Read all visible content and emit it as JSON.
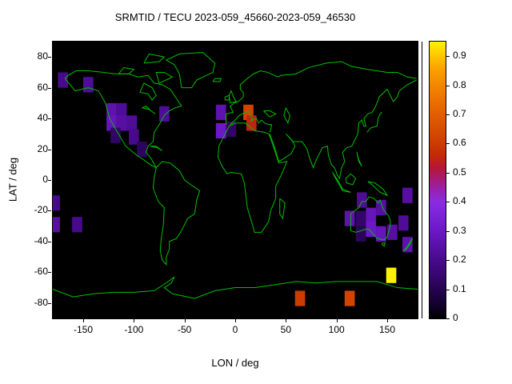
{
  "title": "SRMTID / TECU 2023-059_45660-2023-059_46530",
  "axes": {
    "xlabel": "LON / deg",
    "ylabel": "LAT / deg",
    "x_ticks": [
      -150,
      -100,
      -50,
      0,
      50,
      100,
      150
    ],
    "y_ticks": [
      80,
      60,
      40,
      20,
      0,
      -20,
      -40,
      -60,
      -80
    ],
    "x_range": [
      -180,
      180
    ],
    "y_range": [
      -90,
      90
    ]
  },
  "map": {
    "background": "#000000",
    "coast_color": "#00c000"
  },
  "colorbar": {
    "ticks": [
      0,
      0.1,
      0.2,
      0.3,
      0.4,
      0.5,
      0.6,
      0.7,
      0.8,
      0.9
    ],
    "range": [
      0,
      0.95
    ],
    "stops": [
      [
        0.0,
        "#000000"
      ],
      [
        0.05,
        "#140130"
      ],
      [
        0.1,
        "#260350"
      ],
      [
        0.15,
        "#380670"
      ],
      [
        0.2,
        "#480a8c"
      ],
      [
        0.25,
        "#5a10a8"
      ],
      [
        0.3,
        "#6c18c6"
      ],
      [
        0.36,
        "#7e24da"
      ],
      [
        0.4,
        "#8a2be2"
      ],
      [
        0.44,
        "#9722b2"
      ],
      [
        0.48,
        "#a81a70"
      ],
      [
        0.52,
        "#b81634"
      ],
      [
        0.56,
        "#c32a06"
      ],
      [
        0.62,
        "#d04400"
      ],
      [
        0.7,
        "#e25e00"
      ],
      [
        0.78,
        "#f17e00"
      ],
      [
        0.85,
        "#fa9e00"
      ],
      [
        0.9,
        "#ffc400"
      ],
      [
        0.95,
        "#fff200"
      ]
    ]
  },
  "chart_data": {
    "type": "heatmap",
    "title": "SRMTID / TECU 2023-059_45660-2023-059_46530",
    "xlabel": "LON / deg",
    "ylabel": "LAT / deg",
    "xlim": [
      -180,
      180
    ],
    "ylim": [
      -90,
      90
    ],
    "value_range": [
      0,
      0.95
    ],
    "cell_size_deg": 10,
    "points": [
      {
        "lon": -170,
        "lat": 65,
        "value": 0.2
      },
      {
        "lon": -145,
        "lat": 62,
        "value": 0.22
      },
      {
        "lon": -122,
        "lat": 45,
        "value": 0.26
      },
      {
        "lon": -112,
        "lat": 45,
        "value": 0.22
      },
      {
        "lon": -122,
        "lat": 37,
        "value": 0.28
      },
      {
        "lon": -112,
        "lat": 37,
        "value": 0.24
      },
      {
        "lon": -102,
        "lat": 37,
        "value": 0.22
      },
      {
        "lon": -118,
        "lat": 29,
        "value": 0.13
      },
      {
        "lon": -100,
        "lat": 28,
        "value": 0.2
      },
      {
        "lon": -92,
        "lat": 20,
        "value": 0.12
      },
      {
        "lon": -70,
        "lat": 43,
        "value": 0.22
      },
      {
        "lon": -14,
        "lat": 44,
        "value": 0.26
      },
      {
        "lon": -14,
        "lat": 32,
        "value": 0.3
      },
      {
        "lon": -4,
        "lat": 33,
        "value": 0.13
      },
      {
        "lon": 13,
        "lat": 44,
        "value": 0.62
      },
      {
        "lon": 16,
        "lat": 37,
        "value": 0.55
      },
      {
        "lon": -178,
        "lat": -15,
        "value": 0.2
      },
      {
        "lon": -178,
        "lat": -29,
        "value": 0.24
      },
      {
        "lon": -156,
        "lat": -29,
        "value": 0.2
      },
      {
        "lon": 125,
        "lat": -13,
        "value": 0.22
      },
      {
        "lon": 170,
        "lat": -10,
        "value": 0.24
      },
      {
        "lon": 113,
        "lat": -25,
        "value": 0.26
      },
      {
        "lon": 124,
        "lat": -25,
        "value": 0.14
      },
      {
        "lon": 134,
        "lat": -23,
        "value": 0.28
      },
      {
        "lon": 144,
        "lat": -18,
        "value": 0.24
      },
      {
        "lon": 134,
        "lat": -32,
        "value": 0.3
      },
      {
        "lon": 144,
        "lat": -35,
        "value": 0.28
      },
      {
        "lon": 155,
        "lat": -34,
        "value": 0.24
      },
      {
        "lon": 166,
        "lat": -28,
        "value": 0.22
      },
      {
        "lon": 124,
        "lat": -35,
        "value": 0.12
      },
      {
        "lon": 170,
        "lat": -42,
        "value": 0.26
      },
      {
        "lon": 154,
        "lat": -62,
        "value": 0.95
      },
      {
        "lon": 64,
        "lat": -77,
        "value": 0.6
      },
      {
        "lon": 113,
        "lat": -77,
        "value": 0.62
      }
    ]
  }
}
